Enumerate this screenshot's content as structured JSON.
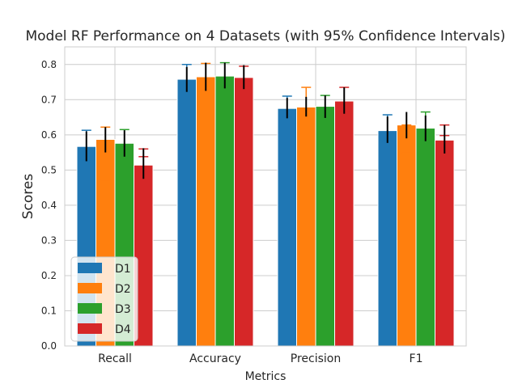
{
  "chart_data": {
    "type": "bar",
    "title": "Model RF Performance on 4 Datasets (with 95% Confidence Intervals)",
    "xlabel": "Metrics",
    "ylabel": "Scores",
    "categories": [
      "Recall",
      "Accuracy",
      "Precision",
      "F1"
    ],
    "ylim": [
      0,
      0.85
    ],
    "yticks": [
      0.0,
      0.1,
      0.2,
      0.3,
      0.4,
      0.5,
      0.6,
      0.7,
      0.8
    ],
    "ytick_labels": [
      "0.0",
      "0.1",
      "0.2",
      "0.3",
      "0.4",
      "0.5",
      "0.6",
      "0.7",
      "0.8"
    ],
    "grid": true,
    "legend_position": "lower-left",
    "series": [
      {
        "name": "D1",
        "color": "#1f77b4",
        "values": [
          0.567,
          0.758,
          0.675,
          0.612
        ],
        "err_black": [
          [
            0.525,
            0.61
          ],
          [
            0.722,
            0.793
          ],
          [
            0.647,
            0.705
          ],
          [
            0.577,
            0.652
          ]
        ],
        "err_color": [
          [
            0.528,
            0.613
          ],
          [
            0.73,
            0.8
          ],
          [
            0.65,
            0.71
          ],
          [
            0.582,
            0.657
          ]
        ]
      },
      {
        "name": "D2",
        "color": "#ff7f0e",
        "values": [
          0.587,
          0.765,
          0.679,
          0.628
        ],
        "err_black": [
          [
            0.55,
            0.622
          ],
          [
            0.725,
            0.805
          ],
          [
            0.652,
            0.708
          ],
          [
            0.59,
            0.665
          ]
        ],
        "err_color": [
          [
            0.472,
            0.622
          ],
          [
            0.728,
            0.803
          ],
          [
            0.645,
            0.735
          ],
          [
            0.548,
            0.628
          ]
        ]
      },
      {
        "name": "D3",
        "color": "#2ca02c",
        "values": [
          0.576,
          0.767,
          0.681,
          0.619
        ],
        "err_black": [
          [
            0.538,
            0.613
          ],
          [
            0.732,
            0.805
          ],
          [
            0.648,
            0.712
          ],
          [
            0.582,
            0.655
          ]
        ],
        "err_color": [
          [
            0.53,
            0.615
          ],
          [
            0.733,
            0.805
          ],
          [
            0.652,
            0.712
          ],
          [
            0.578,
            0.665
          ]
        ]
      },
      {
        "name": "D4",
        "color": "#d62728",
        "values": [
          0.514,
          0.763,
          0.696,
          0.585
        ],
        "err_black": [
          [
            0.475,
            0.562
          ],
          [
            0.73,
            0.798
          ],
          [
            0.66,
            0.735
          ],
          [
            0.547,
            0.628
          ]
        ],
        "err_color": [
          [
            0.538,
            0.56
          ],
          [
            0.735,
            0.795
          ],
          [
            0.668,
            0.735
          ],
          [
            0.598,
            0.628
          ]
        ]
      }
    ]
  }
}
